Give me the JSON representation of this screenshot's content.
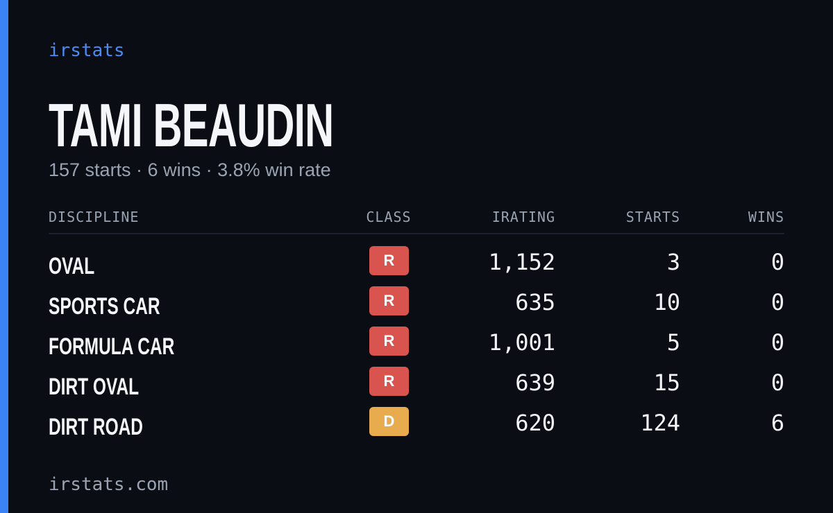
{
  "brand": "irstats",
  "profile": {
    "name": "TAMI BEAUDIN",
    "summary": "157 starts · 6 wins · 3.8% win rate"
  },
  "table": {
    "columns": [
      "DISCIPLINE",
      "CLASS",
      "IRATING",
      "STARTS",
      "WINS"
    ],
    "rows": [
      {
        "discipline": "OVAL",
        "class": "R",
        "class_color": "#d9534f",
        "irating": "1,152",
        "starts": "3",
        "wins": "0"
      },
      {
        "discipline": "SPORTS CAR",
        "class": "R",
        "class_color": "#d9534f",
        "irating": "635",
        "starts": "10",
        "wins": "0"
      },
      {
        "discipline": "FORMULA CAR",
        "class": "R",
        "class_color": "#d9534f",
        "irating": "1,001",
        "starts": "5",
        "wins": "0"
      },
      {
        "discipline": "DIRT OVAL",
        "class": "R",
        "class_color": "#d9534f",
        "irating": "639",
        "starts": "15",
        "wins": "0"
      },
      {
        "discipline": "DIRT ROAD",
        "class": "D",
        "class_color": "#e8ac4e",
        "irating": "620",
        "starts": "124",
        "wins": "6"
      }
    ]
  },
  "footer": "irstats.com"
}
